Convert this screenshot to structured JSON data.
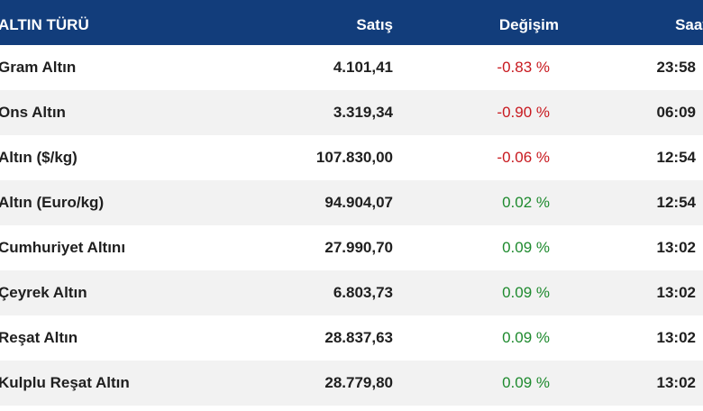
{
  "header": {
    "name": "ALTIN TÜRÜ",
    "price": "Satış",
    "change": "Değişim",
    "time": "Saat"
  },
  "rows": [
    {
      "name": "Gram Altın",
      "price": "4.101,41",
      "change": "-0.83 %",
      "time": "23:58",
      "trend": "neg"
    },
    {
      "name": "Ons Altın",
      "price": "3.319,34",
      "change": "-0.90 %",
      "time": "06:09",
      "trend": "neg"
    },
    {
      "name": "Altın ($/kg)",
      "price": "107.830,00",
      "change": "-0.06 %",
      "time": "12:54",
      "trend": "neg"
    },
    {
      "name": "Altın (Euro/kg)",
      "price": "94.904,07",
      "change": "0.02 %",
      "time": "12:54",
      "trend": "pos"
    },
    {
      "name": "Cumhuriyet Altını",
      "price": "27.990,70",
      "change": "0.09 %",
      "time": "13:02",
      "trend": "pos"
    },
    {
      "name": "Çeyrek Altın",
      "price": "6.803,73",
      "change": "0.09 %",
      "time": "13:02",
      "trend": "pos"
    },
    {
      "name": "Reşat Altın",
      "price": "28.837,63",
      "change": "0.09 %",
      "time": "13:02",
      "trend": "pos"
    },
    {
      "name": "Kulplu Reşat Altın",
      "price": "28.779,80",
      "change": "0.09 %",
      "time": "13:02",
      "trend": "pos"
    }
  ],
  "colors": {
    "header_bg": "#123d7b",
    "negative": "#c8191f",
    "positive": "#1e8a2e",
    "row_alt": "#f2f2f2"
  }
}
